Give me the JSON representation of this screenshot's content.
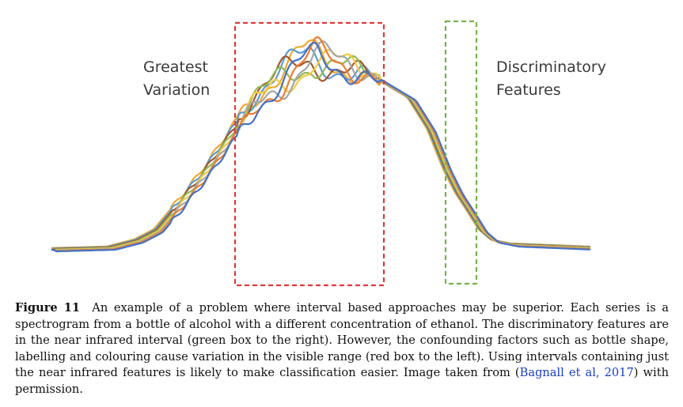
{
  "figure": {
    "labels": {
      "left_line1": "Greatest",
      "left_line2": "Variation",
      "right_line1": "Discriminatory",
      "right_line2": "Features"
    },
    "colors": {
      "red_box": "#e03a3a",
      "green_box": "#78b44a",
      "series": [
        "#f0a830",
        "#5b9bd5",
        "#a05a2c",
        "#8fba54",
        "#f7c940",
        "#a5a5a5",
        "#ed7d31",
        "#4472c4"
      ]
    }
  },
  "caption": {
    "label": "Figure 11",
    "text_before": "An example of a problem where interval based approaches may be superior. Each series is a spectrogram from a bottle of alcohol with a different concentration of ethanol. The discriminatory features are in the near infrared interval (green box to the right). However, the confounding factors such as bottle shape, labelling and colouring cause variation in the visible range (red box to the left). Using intervals containing just the near infrared features is likely to make classification easier. Image taken from (",
    "citation": "Bagnall et al, 2017",
    "text_after": ") with permission."
  }
}
